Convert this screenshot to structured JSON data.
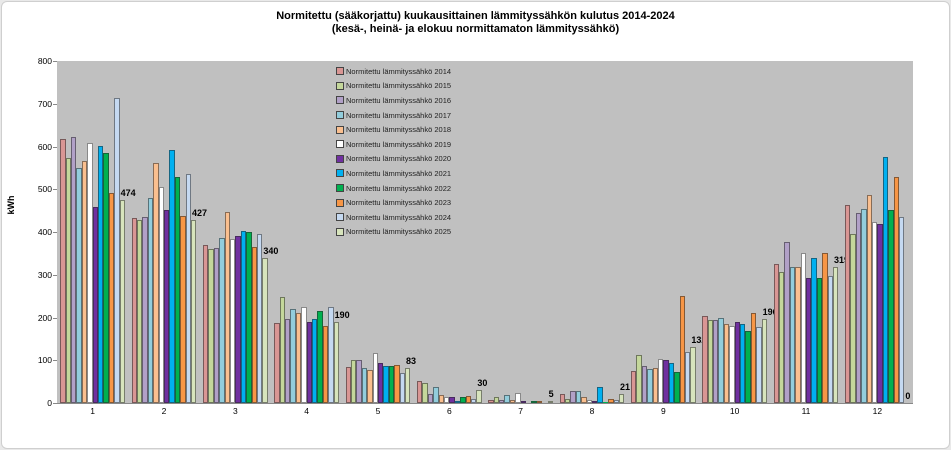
{
  "chart_data": {
    "type": "bar",
    "title": "Normitettu (sääkorjattu) kuukausittainen lämmityssähkön kulutus 2014-2024",
    "subtitle": "(kesä-, heinä- ja elokuu normittamaton lämmityssähkö)",
    "xlabel": "",
    "ylabel": "kWh",
    "ylim": [
      0,
      800
    ],
    "yticks": [
      0,
      100,
      200,
      300,
      400,
      500,
      600,
      700,
      800
    ],
    "grid": false,
    "legend_position": "inside-top-left-center",
    "categories": [
      "1",
      "2",
      "3",
      "4",
      "5",
      "6",
      "7",
      "8",
      "9",
      "10",
      "11",
      "12"
    ],
    "series": [
      {
        "name": "Normitettu lämmityssähkö 2014",
        "color": "#d99694",
        "values": [
          617,
          433,
          370,
          187,
          84,
          51,
          8,
          20,
          75,
          204,
          325,
          463
        ]
      },
      {
        "name": "Normitettu lämmityssähkö 2015",
        "color": "#c4d79b",
        "values": [
          573,
          428,
          360,
          248,
          100,
          47,
          13,
          9,
          112,
          195,
          306,
          395
        ]
      },
      {
        "name": "Normitettu lämmityssähkö 2016",
        "color": "#b1a0c7",
        "values": [
          622,
          435,
          362,
          196,
          100,
          21,
          7,
          28,
          87,
          195,
          377,
          444
        ]
      },
      {
        "name": "Normitettu lämmityssähkö 2017",
        "color": "#92cddc",
        "values": [
          550,
          480,
          386,
          220,
          82,
          37,
          18,
          27,
          80,
          200,
          318,
          454
        ]
      },
      {
        "name": "Normitettu lämmityssähkö 2018",
        "color": "#fabf8f",
        "values": [
          566,
          561,
          447,
          211,
          77,
          19,
          8,
          13,
          82,
          185,
          318,
          487
        ]
      },
      {
        "name": "Normitettu lämmityssähkö 2019",
        "color": "#ffffff",
        "values": [
          608,
          505,
          384,
          225,
          117,
          14,
          24,
          8,
          103,
          180,
          351,
          423
        ]
      },
      {
        "name": "Normitettu lämmityssähkö 2020",
        "color": "#7030a0",
        "values": [
          458,
          451,
          391,
          189,
          94,
          14,
          3,
          5,
          100,
          190,
          292,
          419
        ]
      },
      {
        "name": "Normitettu lämmityssähkö 2021",
        "color": "#00b0f0",
        "values": [
          601,
          592,
          402,
          196,
          87,
          5,
          1,
          38,
          94,
          185,
          339,
          575
        ]
      },
      {
        "name": "Normitettu lämmityssähkö 2022",
        "color": "#00b050",
        "values": [
          585,
          529,
          400,
          215,
          87,
          14,
          3,
          2,
          73,
          168,
          292,
          451
        ]
      },
      {
        "name": "Normitettu lämmityssähkö 2023",
        "color": "#f79646",
        "values": [
          491,
          437,
          365,
          180,
          89,
          16,
          5,
          9,
          250,
          211,
          351,
          529
        ]
      },
      {
        "name": "Normitettu lämmityssähkö 2024",
        "color": "#c5d9f1",
        "values": [
          713,
          536,
          395,
          225,
          70,
          9,
          0,
          6,
          119,
          178,
          297,
          435
        ]
      },
      {
        "name": "Normitettu lämmityssähkö 2025",
        "color": "#d7e4bc",
        "values": [
          474,
          427,
          340,
          190,
          83,
          30,
          5,
          21,
          132,
          196,
          319,
          0
        ]
      }
    ],
    "data_labels_series": "Normitettu lämmityssähkö 2025"
  }
}
